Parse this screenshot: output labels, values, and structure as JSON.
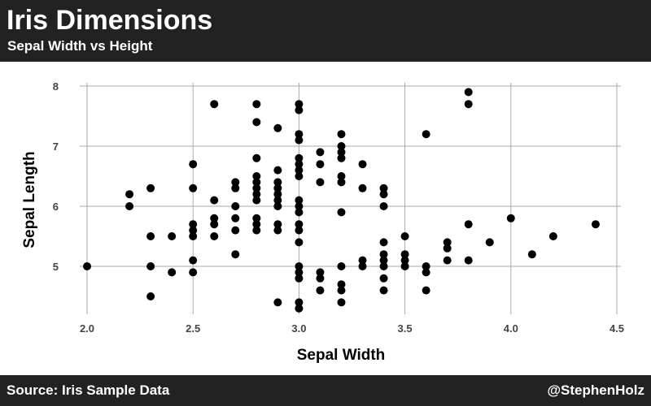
{
  "header": {
    "title": "Iris Dimensions",
    "subtitle": "Sepal Width vs Height"
  },
  "footer": {
    "source": "Source: Iris Sample Data",
    "handle": "@StephenHolz"
  },
  "colors": {
    "banner": "#222222",
    "points": "#000000",
    "grid": "#aaaaaa"
  },
  "chart_data": {
    "type": "scatter",
    "xlabel": "Sepal Width",
    "ylabel": "Sepal Length",
    "xlim": [
      2.0,
      4.5
    ],
    "ylim": [
      4.3,
      8.0
    ],
    "x_ticks": [
      "2.0",
      "2.5",
      "3.0",
      "3.5",
      "4.0",
      "4.5"
    ],
    "y_ticks": [
      "5",
      "6",
      "7",
      "8"
    ],
    "grid": true,
    "series": [
      {
        "points": [
          [
            2.0,
            5.0
          ],
          [
            2.2,
            6.0
          ],
          [
            2.2,
            6.2
          ],
          [
            2.3,
            4.5
          ],
          [
            2.3,
            5.0
          ],
          [
            2.3,
            5.5
          ],
          [
            2.3,
            6.3
          ],
          [
            2.4,
            4.9
          ],
          [
            2.4,
            5.5
          ],
          [
            2.5,
            4.9
          ],
          [
            2.5,
            5.1
          ],
          [
            2.5,
            5.5
          ],
          [
            2.5,
            5.6
          ],
          [
            2.5,
            5.7
          ],
          [
            2.5,
            6.3
          ],
          [
            2.5,
            6.7
          ],
          [
            2.6,
            5.5
          ],
          [
            2.6,
            5.7
          ],
          [
            2.6,
            5.8
          ],
          [
            2.6,
            6.1
          ],
          [
            2.6,
            7.7
          ],
          [
            2.7,
            5.2
          ],
          [
            2.7,
            5.6
          ],
          [
            2.7,
            5.8
          ],
          [
            2.7,
            6.0
          ],
          [
            2.7,
            6.3
          ],
          [
            2.7,
            6.4
          ],
          [
            2.8,
            5.6
          ],
          [
            2.8,
            5.7
          ],
          [
            2.8,
            5.8
          ],
          [
            2.8,
            6.1
          ],
          [
            2.8,
            6.2
          ],
          [
            2.8,
            6.3
          ],
          [
            2.8,
            6.4
          ],
          [
            2.8,
            6.5
          ],
          [
            2.8,
            6.8
          ],
          [
            2.8,
            7.4
          ],
          [
            2.8,
            7.7
          ],
          [
            2.9,
            4.4
          ],
          [
            2.9,
            5.6
          ],
          [
            2.9,
            5.7
          ],
          [
            2.9,
            6.0
          ],
          [
            2.9,
            6.1
          ],
          [
            2.9,
            6.2
          ],
          [
            2.9,
            6.3
          ],
          [
            2.9,
            6.4
          ],
          [
            2.9,
            6.6
          ],
          [
            2.9,
            7.3
          ],
          [
            3.0,
            4.3
          ],
          [
            3.0,
            4.4
          ],
          [
            3.0,
            4.8
          ],
          [
            3.0,
            4.9
          ],
          [
            3.0,
            5.0
          ],
          [
            3.0,
            5.4
          ],
          [
            3.0,
            5.6
          ],
          [
            3.0,
            5.7
          ],
          [
            3.0,
            5.9
          ],
          [
            3.0,
            6.0
          ],
          [
            3.0,
            6.1
          ],
          [
            3.0,
            6.5
          ],
          [
            3.0,
            6.6
          ],
          [
            3.0,
            6.7
          ],
          [
            3.0,
            6.8
          ],
          [
            3.0,
            7.1
          ],
          [
            3.0,
            7.2
          ],
          [
            3.0,
            7.6
          ],
          [
            3.0,
            7.7
          ],
          [
            3.1,
            4.6
          ],
          [
            3.1,
            4.8
          ],
          [
            3.1,
            4.9
          ],
          [
            3.1,
            6.4
          ],
          [
            3.1,
            6.7
          ],
          [
            3.1,
            6.9
          ],
          [
            3.2,
            4.4
          ],
          [
            3.2,
            4.6
          ],
          [
            3.2,
            4.7
          ],
          [
            3.2,
            5.0
          ],
          [
            3.2,
            5.9
          ],
          [
            3.2,
            6.4
          ],
          [
            3.2,
            6.5
          ],
          [
            3.2,
            6.8
          ],
          [
            3.2,
            6.9
          ],
          [
            3.2,
            7.0
          ],
          [
            3.2,
            7.2
          ],
          [
            3.3,
            5.0
          ],
          [
            3.3,
            5.1
          ],
          [
            3.3,
            6.3
          ],
          [
            3.3,
            6.7
          ],
          [
            3.4,
            4.6
          ],
          [
            3.4,
            4.8
          ],
          [
            3.4,
            5.0
          ],
          [
            3.4,
            5.1
          ],
          [
            3.4,
            5.2
          ],
          [
            3.4,
            5.4
          ],
          [
            3.4,
            6.0
          ],
          [
            3.4,
            6.2
          ],
          [
            3.4,
            6.3
          ],
          [
            3.5,
            5.0
          ],
          [
            3.5,
            5.1
          ],
          [
            3.5,
            5.2
          ],
          [
            3.5,
            5.5
          ],
          [
            3.6,
            4.6
          ],
          [
            3.6,
            4.9
          ],
          [
            3.6,
            5.0
          ],
          [
            3.6,
            7.2
          ],
          [
            3.7,
            5.1
          ],
          [
            3.7,
            5.3
          ],
          [
            3.7,
            5.4
          ],
          [
            3.8,
            5.1
          ],
          [
            3.8,
            5.7
          ],
          [
            3.8,
            7.7
          ],
          [
            3.8,
            7.9
          ],
          [
            3.9,
            5.4
          ],
          [
            4.0,
            5.8
          ],
          [
            4.1,
            5.2
          ],
          [
            4.2,
            5.5
          ],
          [
            4.4,
            5.7
          ]
        ]
      }
    ]
  }
}
